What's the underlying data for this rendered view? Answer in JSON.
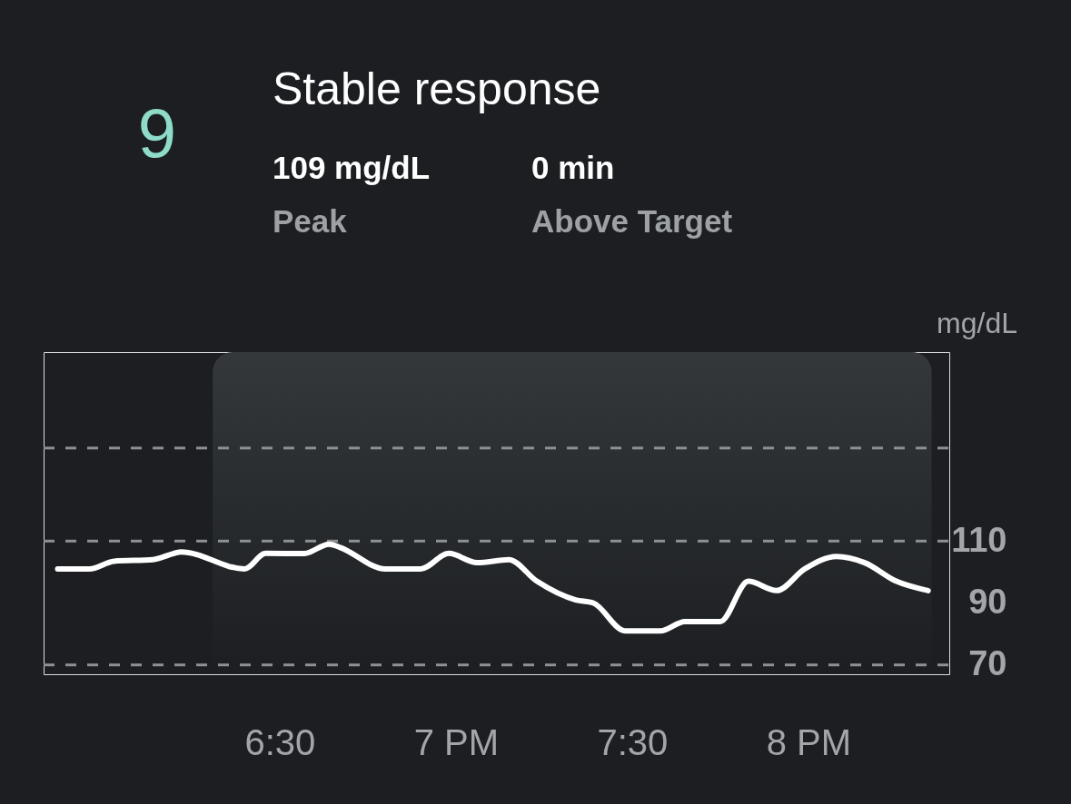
{
  "chart_data": {
    "type": "line",
    "title": "Stable response",
    "annotations": [
      "9",
      "109 mg/dL",
      "Peak",
      "0 min",
      "Above Target"
    ],
    "ylabel": "mg/dL",
    "x": [
      5.87,
      5.96,
      6.03,
      6.14,
      6.2,
      6.22,
      6.4,
      6.46,
      6.57,
      6.64,
      6.67,
      6.8,
      6.9,
      6.98,
      7.06,
      7.15,
      7.23,
      7.34,
      7.39,
      7.48,
      7.58,
      7.65,
      7.75,
      7.83,
      7.91,
      7.99,
      8.08,
      8.16,
      8.25,
      8.34
    ],
    "series": [
      {
        "color": "#ffffff",
        "values": [
          101,
          101,
          103.5,
          104,
          106,
          106.5,
          101,
          106,
          106,
          109,
          108,
          101,
          101,
          106,
          103,
          104,
          97,
          91,
          90,
          81,
          81,
          84,
          84,
          97,
          94,
          101,
          105,
          103,
          97,
          94
        ]
      }
    ],
    "xlim": [
      5.83,
      8.4
    ],
    "xticks": [
      {
        "value": 6.5,
        "label": "6:30"
      },
      {
        "value": 7,
        "label": "7 PM"
      },
      {
        "value": 7.5,
        "label": "7:30"
      },
      {
        "value": 8,
        "label": "8 PM"
      }
    ],
    "ylim": [
      67,
      171
    ],
    "yticks": [
      70,
      90,
      110
    ],
    "ref_lines": [
      {
        "axis": "y",
        "value": 140,
        "color": "#8e9194",
        "line_style": "dashed"
      },
      {
        "axis": "y",
        "value": 110,
        "color": "#8e9194",
        "line_style": "dashed"
      },
      {
        "axis": "y",
        "value": 70,
        "color": "#8e9194",
        "line_style": "dashed"
      }
    ],
    "bands": [
      {
        "axis": "x",
        "from": 6.31,
        "to": 8.35,
        "color": "#34383b"
      }
    ],
    "grid": false,
    "marker": "none",
    "line_style": "solid"
  }
}
